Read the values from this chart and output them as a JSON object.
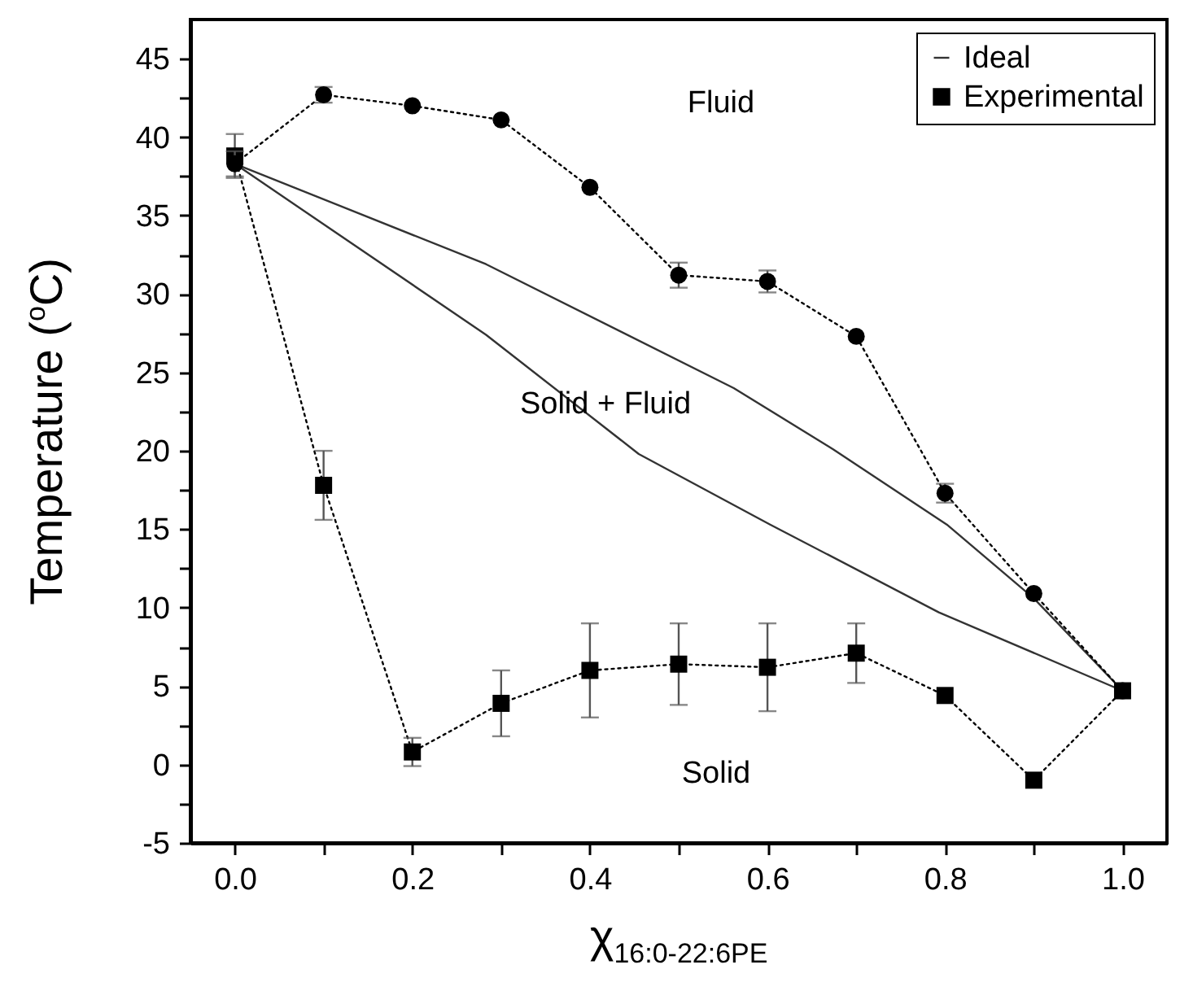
{
  "chart_data": {
    "type": "line",
    "xlabel": "χ$_{16:0-22:6PE}$",
    "ylabel": "Temperature ($^{o}$C)",
    "xlim": [
      -0.05,
      1.05
    ],
    "ylim": [
      -5,
      47.5
    ],
    "xticks": [
      {
        "value": 0,
        "label": "0.0"
      },
      {
        "value": 0.1,
        "label": null
      },
      0.2,
      {
        "value": 0.3,
        "label": null
      },
      0.4,
      {
        "value": 0.5,
        "label": null
      },
      0.6,
      {
        "value": 0.7,
        "label": null
      },
      0.8,
      {
        "value": 0.9,
        "label": null
      },
      {
        "value": 1,
        "label": "1.0"
      }
    ],
    "yticks": [
      -5,
      {
        "value": -2.5,
        "label": null
      },
      0,
      {
        "value": 2.5,
        "label": null
      },
      5,
      {
        "value": 7.5,
        "label": null
      },
      10,
      {
        "value": 12.5,
        "label": null
      },
      15,
      {
        "value": 17.5,
        "label": null
      },
      20,
      {
        "value": 22.5,
        "label": null
      },
      25,
      {
        "value": 27.5,
        "label": null
      },
      30,
      {
        "value": 32.5,
        "label": null
      },
      35,
      {
        "value": 37.5,
        "label": null
      },
      40,
      {
        "value": 42.5,
        "label": null
      },
      45
    ],
    "grid": false,
    "legend": "top right",
    "series": [
      {
        "name": "Ideal",
        "color": "#333333",
        "line_style": "solid",
        "marker": "none",
        "x": [
          0,
          0.283,
          0.562,
          0.674,
          0.802,
          0.9,
          1
        ],
        "values": [
          38.3,
          31.9,
          24.0,
          20.1,
          15.3,
          10.6,
          4.7
        ]
      },
      {
        "color": "#333333",
        "line_style": "solid",
        "marker": "none",
        "x": [
          0,
          0.283,
          0.455,
          0.603,
          0.793,
          1
        ],
        "values": [
          38.3,
          27.4,
          19.8,
          15.3,
          9.7,
          4.7
        ]
      },
      {
        "name": "Experimental",
        "color": "#000000",
        "line_style": "dotted",
        "marker": "square",
        "x": [
          0,
          0.1,
          0.2,
          0.3,
          0.4,
          0.5,
          0.6,
          0.7,
          0.8,
          0.9,
          1
        ],
        "values": [
          38.8,
          17.8,
          0.8,
          3.9,
          6.0,
          6.4,
          6.2,
          7.1,
          4.4,
          -1.0,
          4.7
        ],
        "errors": [
          1.4,
          2.2,
          0.9,
          2.1,
          3,
          2.6,
          2.8,
          1.9,
          null,
          null,
          null
        ]
      },
      {
        "color": "#000000",
        "line_style": "dotted",
        "marker": "circle",
        "x": [
          0,
          0.1,
          0.2,
          0.3,
          0.4,
          0.5,
          0.6,
          0.7,
          0.8,
          0.9,
          1
        ],
        "values": [
          38.3,
          42.7,
          42.0,
          41.1,
          36.8,
          31.2,
          30.8,
          27.3,
          17.3,
          10.9,
          4.7
        ],
        "errors": [
          0.8,
          0.5,
          null,
          null,
          null,
          0.8,
          0.7,
          null,
          0.6,
          null,
          null
        ]
      }
    ],
    "annotations": [
      "Fluid",
      "Solid + Fluid",
      "Solid"
    ]
  }
}
